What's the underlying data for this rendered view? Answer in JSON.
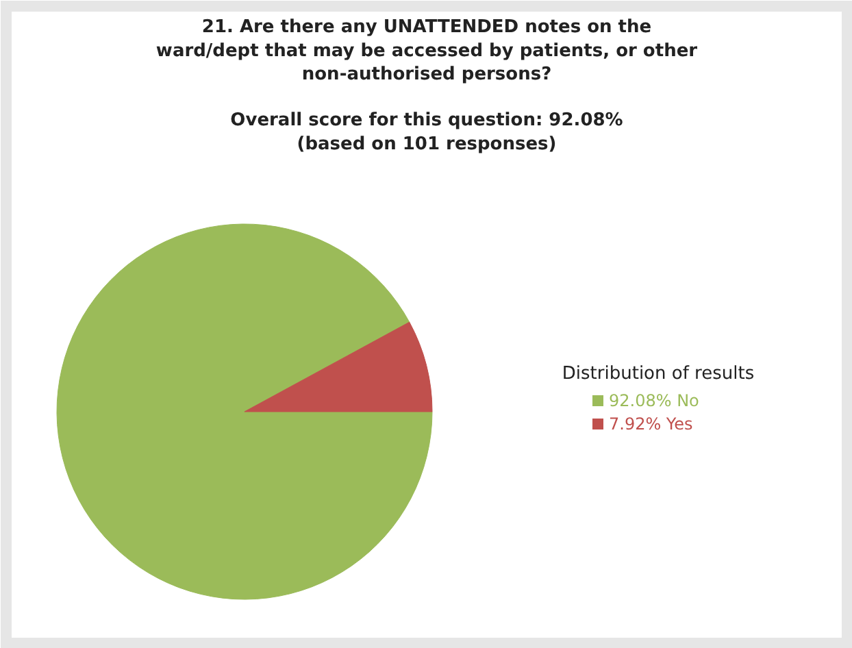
{
  "chart_data": {
    "type": "pie",
    "title": "21. Are there any UNATTENDED notes on the\nward/dept that may be accessed by patients, or other\nnon-authorised persons?",
    "subtitle": "Overall score for this question: 92.08%\n(based on 101 responses)",
    "legend_title": "Distribution of results",
    "legend": "right",
    "categories": [
      "No",
      "Yes"
    ],
    "values": [
      92.08,
      7.92
    ],
    "colors": [
      "#9bbb59",
      "#c0504d"
    ],
    "value_labels": [
      "92.08%",
      "7.92%"
    ]
  }
}
